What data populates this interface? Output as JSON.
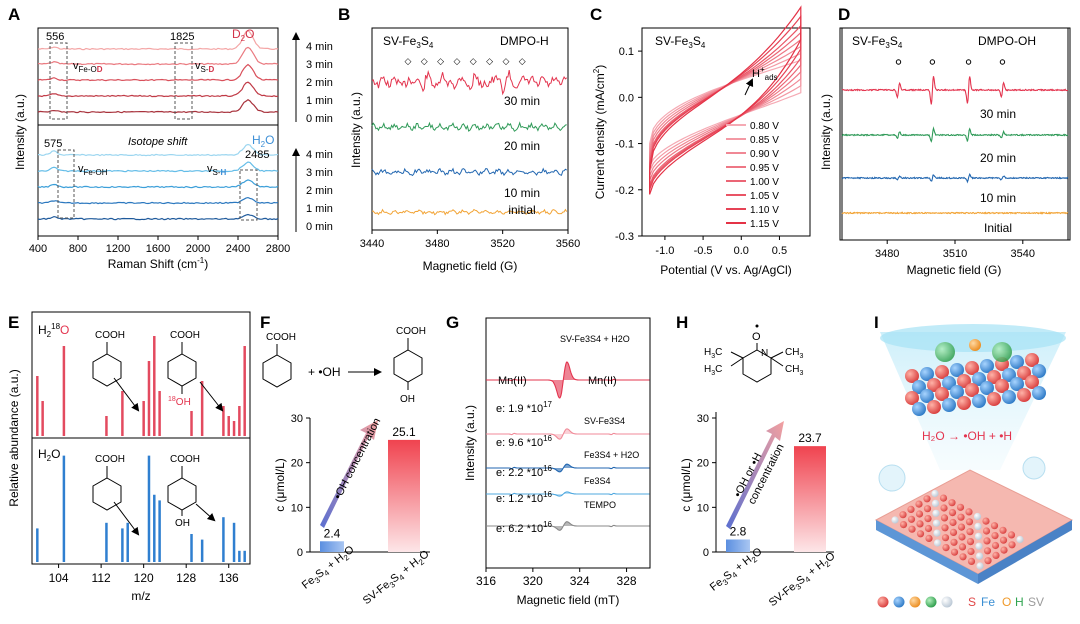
{
  "colors": {
    "d2o": "#d2344a",
    "h2o_mark": "#3d8fd6",
    "red": "#e3344e",
    "green": "#2f9a58",
    "blue": "#2166b0",
    "orange": "#f2a436",
    "gray": "#888888",
    "pink": "#e34a5f"
  },
  "panels": {
    "A": {
      "label": "A",
      "top_title": "D2O",
      "top_title_main": "D",
      "top_title_sub": "2",
      "top_title_end": "O",
      "bottom_title_main": "H",
      "bottom_title_sub": "2",
      "bottom_title_end": "O",
      "box_top_left": "556",
      "box_top_right": "1825",
      "box_bot_left": "575",
      "box_bot_right": "2485",
      "vfeod_v": "v",
      "vfeod_sub": "Fe-O",
      "vfeod_sub_d": "D",
      "vsd_v": "v",
      "vsd_sub": "S-",
      "vsd_sub_d": "D",
      "vfeoh_v": "v",
      "vfeoh_sub": "Fe-OH",
      "vsh_v": "v",
      "vsh_sub": "S-",
      "vsh_sub_h": "H",
      "isotope": "Isotope shift",
      "times_top": [
        "4 min",
        "3 min",
        "2 min",
        "1 min",
        "0 min"
      ],
      "times_bottom": [
        "4 min",
        "3 min",
        "2 min",
        "1 min",
        "0 min"
      ],
      "xticks": [
        "400",
        "800",
        "1200",
        "1600",
        "2000",
        "2400",
        "2800"
      ],
      "xlabel_main": "Raman Shift (cm",
      "xlabel_sup": "-1",
      "xlabel_end": ")",
      "ylabel": "Intensity (a.u.)"
    },
    "B": {
      "label": "B",
      "title_left": "SV-Fe",
      "title_left_sub1": "3",
      "title_left_mid": "S",
      "title_left_sub2": "4",
      "title_right": "DMPO-H",
      "traces": [
        "30 min",
        "20 min",
        "10 min",
        "initial"
      ],
      "xticks": [
        "3440",
        "3480",
        "3520",
        "3560"
      ],
      "xlabel": "Magnetic field (G)",
      "ylabel": "Intensity (a.u.)"
    },
    "C": {
      "label": "C",
      "title": "SV-Fe",
      "title_sub1": "3",
      "title_mid": "S",
      "title_sub2": "4",
      "annot_main": "H",
      "annot_sup": "+",
      "annot_sub": "ads",
      "legend": [
        "0.80 V",
        "0.85 V",
        "0.90 V",
        "0.95 V",
        "1.00 V",
        "1.05 V",
        "1.10 V",
        "1.15 V"
      ],
      "xticks": [
        "-1.0",
        "-0.5",
        "0.0",
        "0.5"
      ],
      "yticks": [
        "0.1",
        "0.0",
        "-0.1",
        "-0.2",
        "-0.3"
      ],
      "xlabel": "Potential (V vs. Ag/AgCl)",
      "ylabel_main": "Current density (mA/cm",
      "ylabel_sup": "2",
      "ylabel_end": ")"
    },
    "D": {
      "label": "D",
      "title_left": "SV-Fe",
      "title_left_sub1": "3",
      "title_left_mid": "S",
      "title_left_sub2": "4",
      "title_right": "DMPO-OH",
      "traces": [
        "30 min",
        "20 min",
        "10 min",
        "Initial"
      ],
      "xticks": [
        "3480",
        "3510",
        "3540"
      ],
      "xlabel": "Magnetic field (G)",
      "ylabel": "Intensity (a.u.)"
    },
    "E": {
      "label": "E",
      "top_title_main": "H",
      "top_title_sub": "2",
      "top_title_sup": "18",
      "top_title_end": "O",
      "bottom_title": "H",
      "bottom_title_sub": "2",
      "bottom_title_end": "O",
      "cooh": "COOH",
      "oh18_sup": "18",
      "oh18_end": "OH",
      "oh": "OH",
      "xticks": [
        "104",
        "112",
        "120",
        "128",
        "136"
      ],
      "xlabel": "m/z",
      "ylabel": "Relative abundance (a.u.)"
    },
    "F": {
      "label": "F",
      "cooh": "COOH",
      "plus_oh": "+ •OH",
      "oh": "OH",
      "arrow_label": "•OH concentration",
      "yticks": [
        "0",
        "10",
        "20",
        "30"
      ],
      "ylabel": "c (μmol/L)",
      "cat1_main": "Fe",
      "cat1_s1": "3",
      "cat1_mid": "S",
      "cat1_s2": "4",
      "cat1_end": " + H",
      "cat1_s3": "2",
      "cat1_end2": "O",
      "cat2_main": "SV-Fe",
      "cat2_s1": "3",
      "cat2_mid": "S",
      "cat2_s2": "4",
      "cat2_end": " + H",
      "cat2_s3": "2",
      "cat2_end2": "O",
      "value_labels": [
        "2.4",
        "25.1"
      ]
    },
    "G": {
      "label": "G",
      "mn_left": "Mn(II)",
      "mn_right": "Mn(II)",
      "top_name": "SV-Fe3S4 + H2O",
      "names": [
        "SV-Fe3S4",
        "Fe3S4 + H2O",
        "Fe3S4",
        "TEMPO"
      ],
      "e_labels": [
        {
          "pre": "e: 1.9 *10",
          "exp": "17"
        },
        {
          "pre": "e: 9.6 *10",
          "exp": "16"
        },
        {
          "pre": "e: 2.2 *10",
          "exp": "16"
        },
        {
          "pre": "e: 1.2 *10",
          "exp": "16"
        },
        {
          "pre": "e: 6.2 *10",
          "exp": "16"
        }
      ],
      "xticks": [
        "316",
        "320",
        "324",
        "328"
      ],
      "xlabel": "Magnetic field (mT)",
      "ylabel": "Intensity (a.u.)"
    },
    "H": {
      "label": "H",
      "mol_o": "O",
      "mol_n": "N",
      "h3c_a": "H",
      "h3c_b": "3",
      "h3c_c": "C",
      "ch3_a": "CH",
      "ch3_b": "3",
      "arrow_line1": "•OH or •H",
      "arrow_line2": "concentration",
      "yticks": [
        "0",
        "10",
        "20",
        "30"
      ],
      "ylabel": "c (μmol/L)",
      "cat1_main": "Fe",
      "cat1_s1": "3",
      "cat1_mid": "S",
      "cat1_s2": "4",
      "cat1_end": " + H",
      "cat1_s3": "2",
      "cat1_end2": "O",
      "cat2_main": "SV-Fe",
      "cat2_s1": "3",
      "cat2_mid": "S",
      "cat2_s2": "4",
      "cat2_end": " + H",
      "cat2_s3": "2",
      "cat2_end2": "O",
      "value_labels": [
        "2.8",
        "23.7"
      ]
    },
    "I": {
      "label": "I",
      "reaction": "H₂O → •OH + •H",
      "legend": [
        {
          "text": "S",
          "color": "#e04646"
        },
        {
          "text": "Fe",
          "color": "#3b8fd3"
        },
        {
          "text": "O",
          "color": "#f09a2a"
        },
        {
          "text": "H",
          "color": "#2fa44f"
        },
        {
          "text": "SV",
          "color": "#9a9a9a"
        }
      ]
    }
  },
  "chart_data": [
    {
      "panel": "A",
      "type": "line",
      "title": "",
      "xlabel": "Raman Shift (cm-1)",
      "ylabel": "Intensity (a.u.)",
      "xlim": [
        400,
        2800
      ],
      "series": [
        {
          "name": "D2O 4 min",
          "x": [
            400,
            556,
            800,
            1200,
            1600,
            1825,
            2000,
            2300,
            2400,
            2500,
            2600,
            2800
          ],
          "y": [
            0.1,
            0.3,
            0.15,
            0.2,
            0.18,
            0.22,
            0.2,
            0.35,
            0.9,
            1.0,
            0.5,
            0.3
          ]
        },
        {
          "name": "H2O 4 min",
          "x": [
            400,
            575,
            800,
            1200,
            1600,
            2000,
            2300,
            2485,
            2600,
            2800
          ],
          "y": [
            0.1,
            0.45,
            0.1,
            0.05,
            0.05,
            0.05,
            0.15,
            0.6,
            0.25,
            0.1
          ]
        }
      ]
    },
    {
      "panel": "B",
      "type": "line",
      "title": "",
      "xlabel": "Magnetic field (G)",
      "xlim": [
        3440,
        3560
      ],
      "series": [
        {
          "name": "30 min"
        },
        {
          "name": "20 min"
        },
        {
          "name": "10 min"
        },
        {
          "name": "initial"
        }
      ]
    },
    {
      "panel": "C",
      "type": "line",
      "title": "",
      "xlabel": "Potential (V vs. Ag/AgCl)",
      "ylabel": "Current density (mA/cm2)",
      "xlim": [
        -1.3,
        0.9
      ],
      "ylim": [
        -0.3,
        0.15
      ],
      "series": [
        {
          "name": "0.80 V",
          "upper_end": 0.03,
          "lower_start": -0.15
        },
        {
          "name": "0.85 V",
          "upper_end": 0.045,
          "lower_start": -0.16
        },
        {
          "name": "0.90 V",
          "upper_end": 0.06,
          "lower_start": -0.17
        },
        {
          "name": "0.95 V",
          "upper_end": 0.075,
          "lower_start": -0.18
        },
        {
          "name": "1.00 V",
          "upper_end": 0.09,
          "lower_start": -0.19
        },
        {
          "name": "1.05 V",
          "upper_end": 0.105,
          "lower_start": -0.195
        },
        {
          "name": "1.10 V",
          "upper_end": 0.125,
          "lower_start": -0.2
        },
        {
          "name": "1.15 V",
          "upper_end": 0.145,
          "lower_start": -0.21
        }
      ]
    },
    {
      "panel": "D",
      "type": "line",
      "title": "",
      "xlabel": "Magnetic field (G)",
      "xlim": [
        3460,
        3560
      ],
      "peaks_g": [
        3485,
        3500,
        3516,
        3531
      ],
      "series": [
        {
          "name": "30 min",
          "amps": [
            0.45,
            0.9,
            0.9,
            0.45
          ]
        },
        {
          "name": "20 min",
          "amps": [
            0.2,
            0.4,
            0.4,
            0.2
          ]
        },
        {
          "name": "10 min",
          "amps": [
            0.12,
            0.22,
            0.22,
            0.12
          ]
        },
        {
          "name": "Initial",
          "amps": [
            0,
            0,
            0,
            0
          ]
        }
      ]
    },
    {
      "panel": "E",
      "type": "bar",
      "title": "",
      "xlabel": "m/z",
      "ylabel": "Relative abundance (a.u.)",
      "xlim": [
        99,
        140
      ],
      "series": [
        {
          "name": "H2 18O",
          "x": [
            100,
            101,
            105,
            113,
            116,
            120,
            121,
            122,
            123,
            129,
            131,
            135,
            136,
            137,
            138,
            139
          ],
          "y": [
            0.6,
            0.35,
            0.9,
            0.2,
            0.45,
            0.35,
            0.75,
            1.0,
            0.45,
            0.25,
            0.55,
            0.3,
            0.2,
            0.15,
            0.3,
            0.9
          ]
        },
        {
          "name": "H2O",
          "x": [
            100,
            105,
            113,
            116,
            117,
            121,
            122,
            123,
            129,
            131,
            135,
            137,
            138,
            139
          ],
          "y": [
            0.3,
            0.95,
            0.35,
            0.3,
            0.35,
            0.95,
            0.6,
            0.55,
            0.25,
            0.2,
            0.4,
            0.35,
            0.1,
            0.1
          ]
        }
      ]
    },
    {
      "panel": "F",
      "type": "bar",
      "title": "",
      "ylabel": "c (μmol/L)",
      "ylim": [
        0,
        30
      ],
      "categories": [
        "Fe3S4 + H2O",
        "SV-Fe3S4 + H2O"
      ],
      "values": [
        2.4,
        25.1
      ]
    },
    {
      "panel": "G",
      "type": "line",
      "title": "",
      "xlabel": "Magnetic field (mT)",
      "xlim": [
        316,
        330
      ],
      "series": [
        {
          "name": "SV-Fe3S4 + H2O",
          "spin": "1.9 *10^17"
        },
        {
          "name": "SV-Fe3S4",
          "spin": "9.6 *10^16"
        },
        {
          "name": "Fe3S4 + H2O",
          "spin": "2.2 *10^16"
        },
        {
          "name": "Fe3S4",
          "spin": "1.2 *10^16"
        },
        {
          "name": "TEMPO",
          "spin": "6.2 *10^16"
        }
      ]
    },
    {
      "panel": "H",
      "type": "bar",
      "title": "",
      "ylabel": "c (μmol/L)",
      "ylim": [
        0,
        30
      ],
      "categories": [
        "Fe3S4 + H2O",
        "SV-Fe3S4 + H2O"
      ],
      "values": [
        2.8,
        23.7
      ]
    }
  ]
}
